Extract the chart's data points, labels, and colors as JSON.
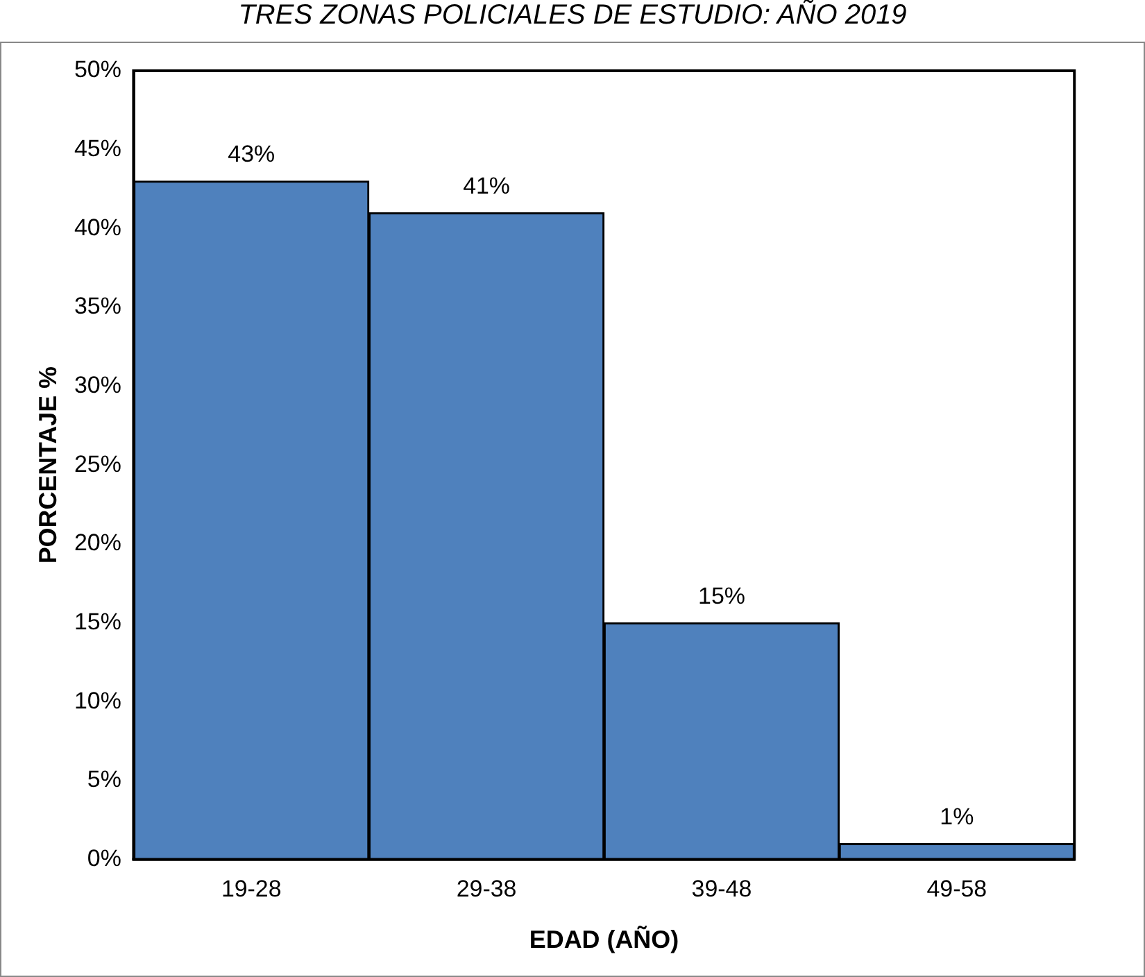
{
  "chart_data": {
    "type": "bar",
    "title": "TRES ZONAS POLICIALES DE ESTUDIO: AÑO 2019",
    "xlabel": "EDAD (AÑO)",
    "ylabel": "PORCENTAJE %",
    "categories": [
      "19-28",
      "29-38",
      "39-48",
      "49-58"
    ],
    "values": [
      43,
      41,
      15,
      1
    ],
    "color": "#4f81bd",
    "value_labels": [
      "43%",
      "41%",
      "15%",
      "1%"
    ],
    "ylim": [
      0,
      50
    ],
    "yticks": [
      {
        "value": 0,
        "label": "0%"
      },
      {
        "value": 5,
        "label": "5%"
      },
      {
        "value": 10,
        "label": "10%"
      },
      {
        "value": 15,
        "label": "15%"
      },
      {
        "value": 20,
        "label": "20%"
      },
      {
        "value": 25,
        "label": "25%"
      },
      {
        "value": 30,
        "label": "30%"
      },
      {
        "value": 35,
        "label": "35%"
      },
      {
        "value": 40,
        "label": "40%"
      },
      {
        "value": 45,
        "label": "45%"
      },
      {
        "value": 50,
        "label": "50%"
      }
    ],
    "grid": false,
    "legend": false
  }
}
